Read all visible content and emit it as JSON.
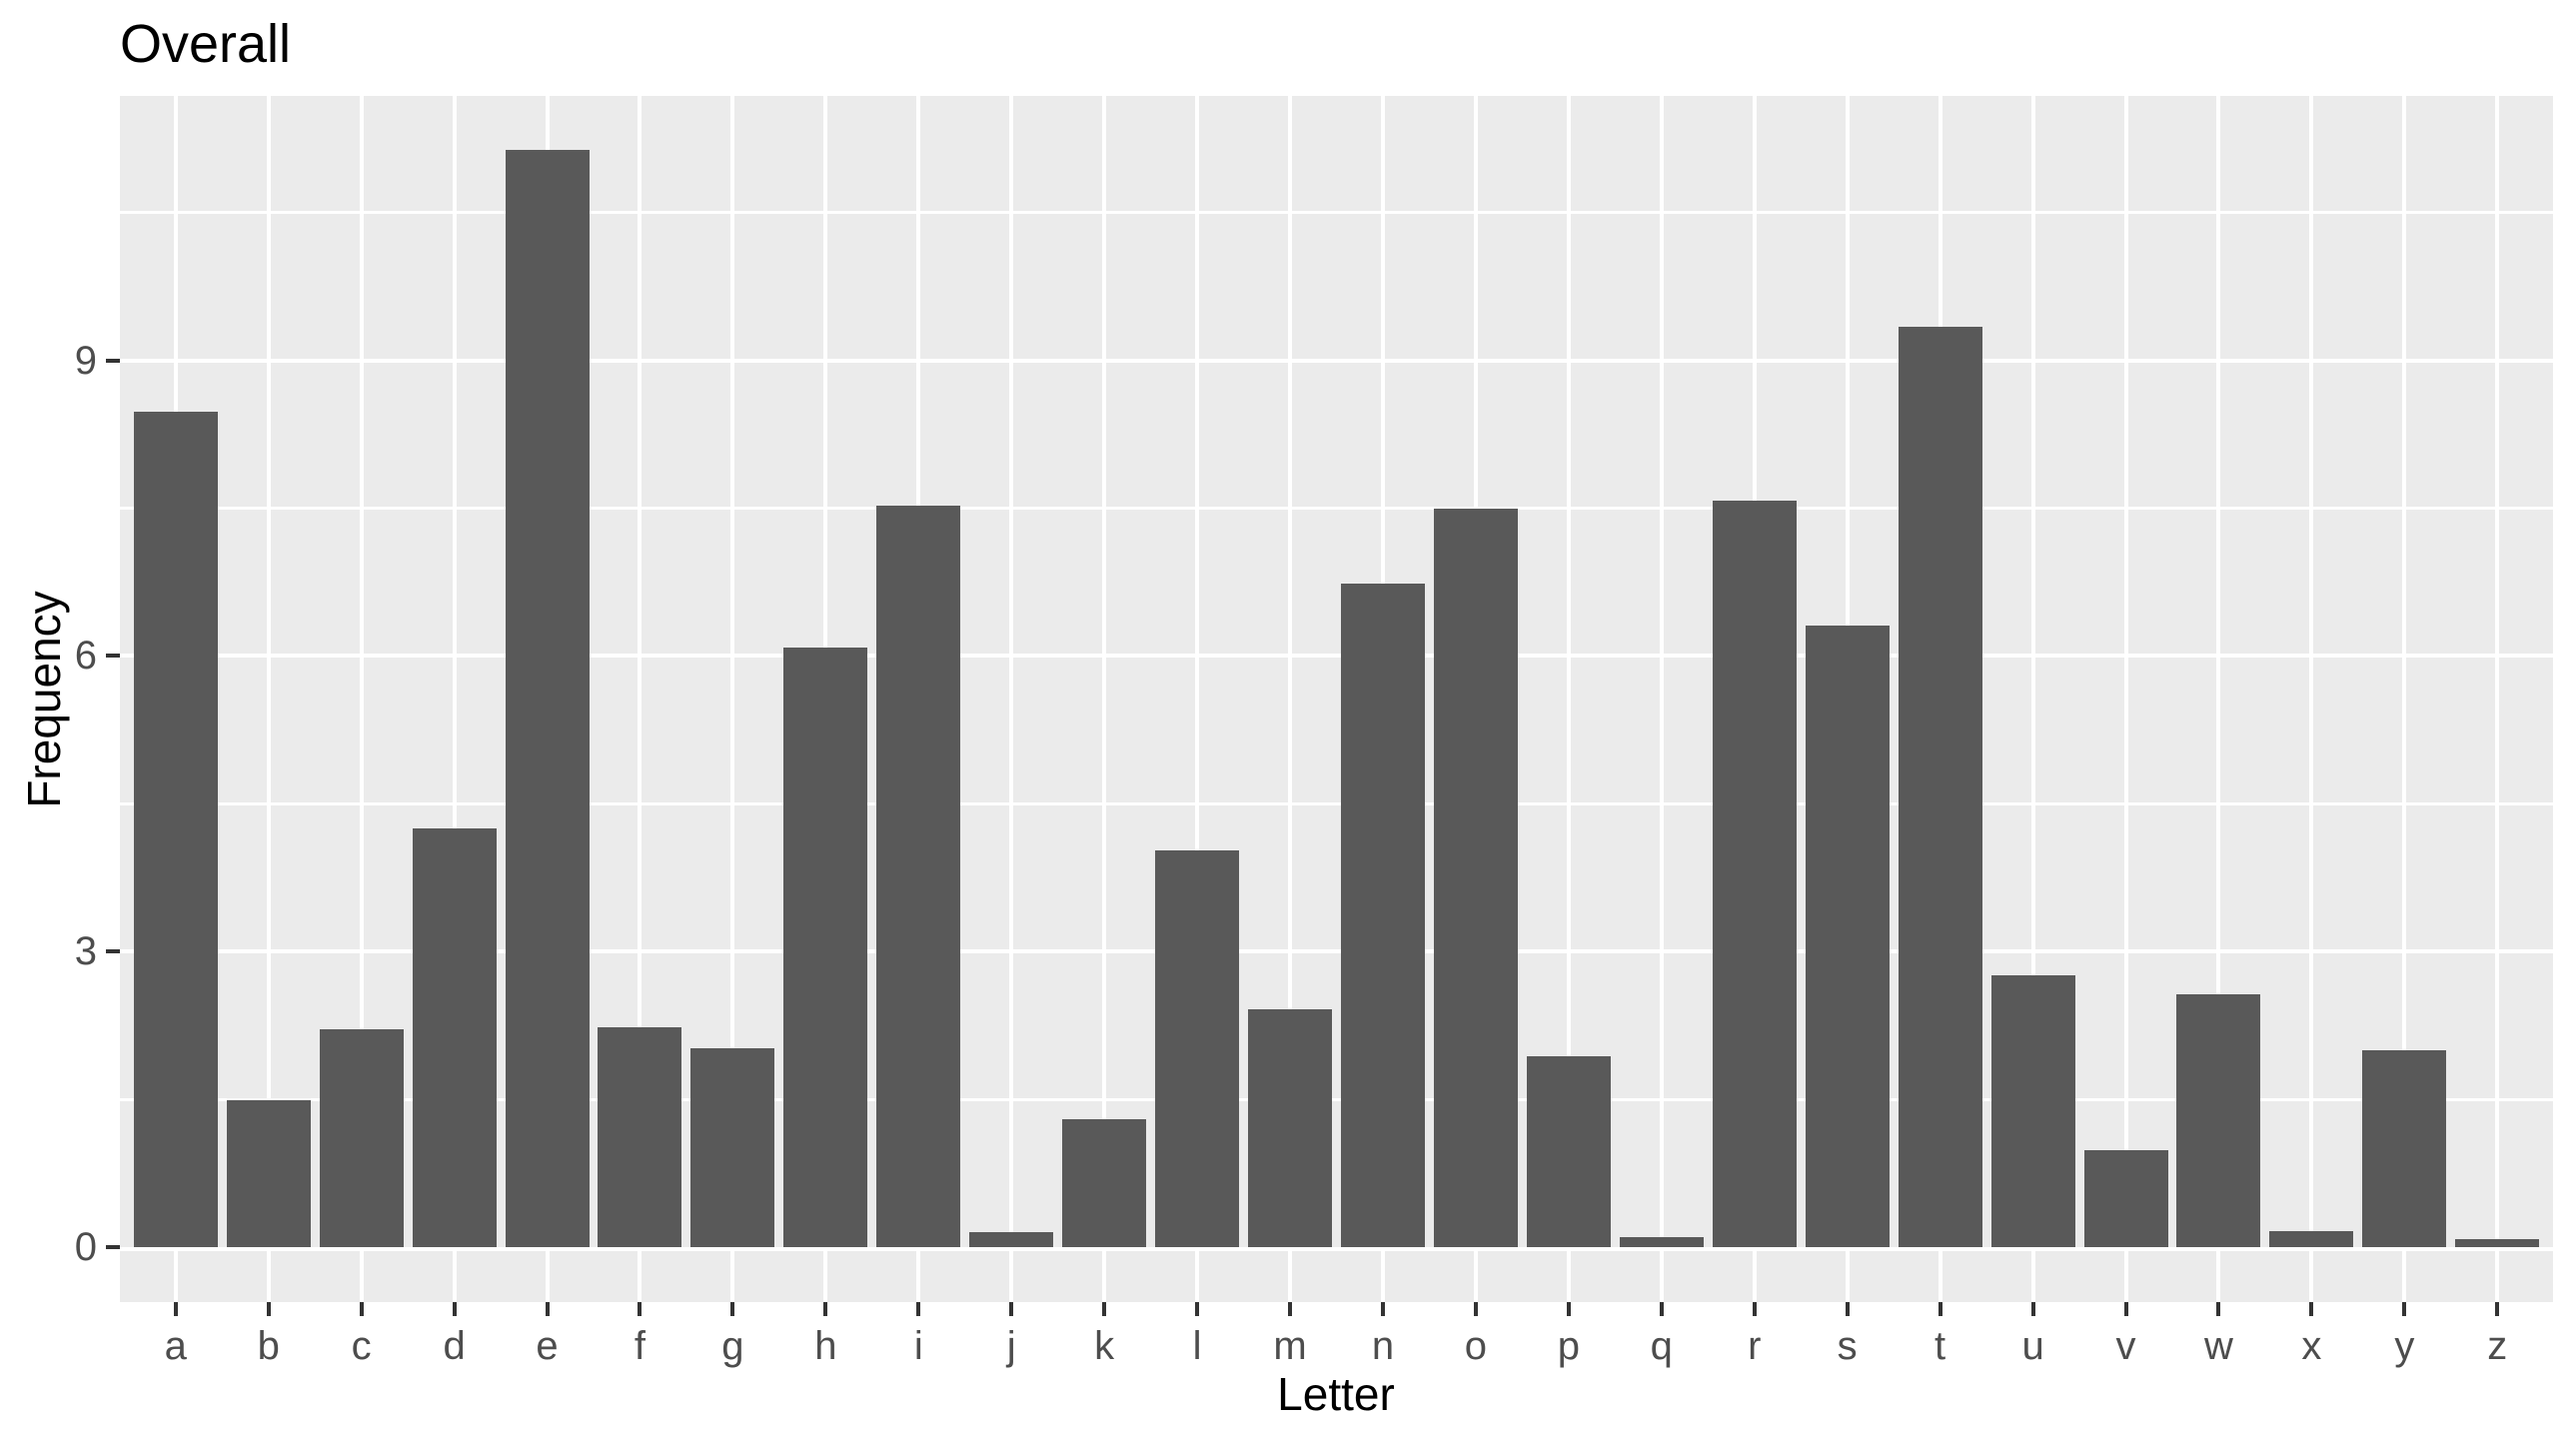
{
  "title": "Overall",
  "chart_data": {
    "type": "bar",
    "title": "Overall",
    "xlabel": "Letter",
    "ylabel": "Frequency",
    "categories": [
      "a",
      "b",
      "c",
      "d",
      "e",
      "f",
      "g",
      "h",
      "i",
      "j",
      "k",
      "l",
      "m",
      "n",
      "o",
      "p",
      "q",
      "r",
      "s",
      "t",
      "u",
      "v",
      "w",
      "x",
      "y",
      "z"
    ],
    "values": [
      8.48,
      1.49,
      2.21,
      4.25,
      11.14,
      2.23,
      2.02,
      6.09,
      7.53,
      0.15,
      1.3,
      4.03,
      2.41,
      6.73,
      7.49,
      1.94,
      0.1,
      7.58,
      6.31,
      9.34,
      2.76,
      0.98,
      2.57,
      0.16,
      2.0,
      0.08
    ],
    "y_ticks": [
      0,
      3,
      6,
      9
    ],
    "y_minor_ticks": [
      1.5,
      4.5,
      7.5,
      10.5
    ],
    "ylim": [
      -0.56,
      11.7
    ],
    "grid": "horizontal major+minor, vertical major per category, white on gray panel",
    "legend": "none",
    "colors": {
      "bar": "#595959",
      "panel_bg": "#EBEBEB",
      "grid": "#FFFFFF",
      "axis_text": "#4D4D4D",
      "tick_mark": "#333333",
      "title_text": "#000000",
      "page_bg": "#FFFFFF"
    }
  }
}
